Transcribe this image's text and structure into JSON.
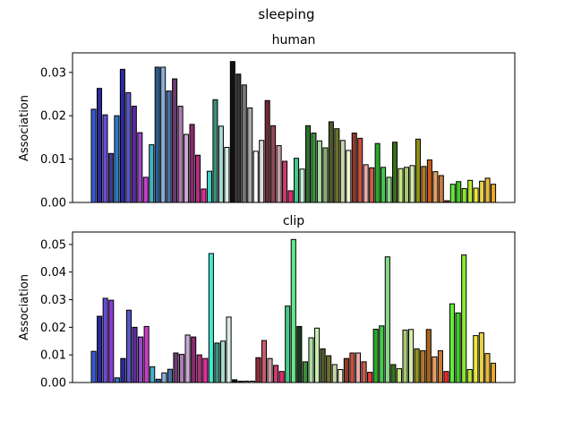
{
  "figure_title": "sleeping",
  "chart_data": [
    {
      "type": "bar",
      "title": "human",
      "xlabel": "",
      "ylabel": "Association",
      "ylim": [
        0,
        0.0345
      ],
      "yticks": [
        0.0,
        0.01,
        0.02,
        0.03
      ],
      "ytick_labels": [
        "0.00",
        "0.01",
        "0.02",
        "0.03"
      ],
      "grid": false,
      "legend": "none",
      "values": [
        0.0215,
        0.0263,
        0.0202,
        0.0113,
        0.02,
        0.0307,
        0.0253,
        0.0222,
        0.0161,
        0.0058,
        0.0133,
        0.0312,
        0.0312,
        0.0257,
        0.0285,
        0.0222,
        0.0157,
        0.018,
        0.0109,
        0.0031,
        0.0072,
        0.0237,
        0.0176,
        0.0127,
        0.0325,
        0.0296,
        0.0271,
        0.0218,
        0.0118,
        0.0143,
        0.0235,
        0.0177,
        0.0131,
        0.0095,
        0.0027,
        0.0102,
        0.0077,
        0.0177,
        0.016,
        0.0142,
        0.0126,
        0.0186,
        0.017,
        0.0143,
        0.012,
        0.016,
        0.0148,
        0.0087,
        0.008,
        0.0136,
        0.0081,
        0.0058,
        0.0139,
        0.0078,
        0.0081,
        0.0085,
        0.0146,
        0.0083,
        0.0098,
        0.0071,
        0.0062,
        0.0004,
        0.0042,
        0.0048,
        0.0032,
        0.0051,
        0.0033,
        0.0049,
        0.0056,
        0.0042
      ],
      "colors": [
        "#3a5bd6",
        "#2a2a9e",
        "#6a4bd6",
        "#3b3a8f",
        "#2d79c4",
        "#2a2a9e",
        "#5b55c8",
        "#5a2a9e",
        "#9a46c8",
        "#c83ec8",
        "#44b0c8",
        "#2a5d8f",
        "#8ab0dc",
        "#4a6fa8",
        "#6a3a6f",
        "#b07ab4",
        "#c8a8d6",
        "#8a2a6f",
        "#b0307e",
        "#e82a9e",
        "#44d0c8",
        "#3a8f7a",
        "#a8d8d0",
        "#d6ece8",
        "#111111",
        "#333333",
        "#777777",
        "#aaaaaa",
        "#ffffff",
        "#dddddd",
        "#6f2a36",
        "#8f4a56",
        "#c89ca8",
        "#c83e6a",
        "#e82a6f",
        "#44c88a",
        "#c8ecd6",
        "#2d6f2a",
        "#3a8f3a",
        "#a8dca0",
        "#8ab06f",
        "#4a5a2a",
        "#6a6f2a",
        "#c8d8a8",
        "#f0f0d0",
        "#8f3a2a",
        "#c8503e",
        "#e8a8a8",
        "#c85a4a",
        "#2aa82a",
        "#44c84a",
        "#8ad88a",
        "#3a6f1a",
        "#c8e880",
        "#a8c86f",
        "#d6ecb0",
        "#8f8f1a",
        "#b07a2a",
        "#c85a1a",
        "#e8a060",
        "#c87a3e",
        "#8f2a2a",
        "#66e83a",
        "#44c82a",
        "#88e830",
        "#b8e83a",
        "#e8e83a",
        "#e8d04a",
        "#e8b83a",
        "#e8a82a"
      ],
      "category_count": 70
    },
    {
      "type": "bar",
      "title": "clip",
      "xlabel": "",
      "ylabel": "Association",
      "ylim": [
        0,
        0.0545
      ],
      "yticks": [
        0.0,
        0.01,
        0.02,
        0.03,
        0.04,
        0.05
      ],
      "ytick_labels": [
        "0.00",
        "0.01",
        "0.02",
        "0.03",
        "0.04",
        "0.05"
      ],
      "grid": false,
      "legend": "none",
      "values": [
        0.0113,
        0.024,
        0.0305,
        0.0298,
        0.0017,
        0.0087,
        0.0262,
        0.02,
        0.0165,
        0.0203,
        0.0057,
        0.0012,
        0.0035,
        0.0048,
        0.0107,
        0.0102,
        0.0172,
        0.0165,
        0.01,
        0.0087,
        0.0467,
        0.0143,
        0.015,
        0.0237,
        0.001,
        0.0005,
        0.0005,
        0.0005,
        0.009,
        0.0152,
        0.0087,
        0.0062,
        0.004,
        0.0277,
        0.0518,
        0.0203,
        0.0075,
        0.0162,
        0.0197,
        0.0122,
        0.0097,
        0.0065,
        0.0047,
        0.0087,
        0.0107,
        0.0107,
        0.0075,
        0.0037,
        0.0193,
        0.0205,
        0.0455,
        0.0065,
        0.005,
        0.019,
        0.0192,
        0.0122,
        0.0115,
        0.0192,
        0.0093,
        0.0115,
        0.004,
        0.0285,
        0.0252,
        0.0462,
        0.0047,
        0.017,
        0.018,
        0.0105,
        0.007
      ],
      "colors": [
        "#3a5bd6",
        "#2a2a9e",
        "#6a4bd6",
        "#8a3ad6",
        "#2d79c4",
        "#2a2a9e",
        "#5b55c8",
        "#5a2a9e",
        "#9a46c8",
        "#c83ec8",
        "#44b0c8",
        "#2a5d8f",
        "#8ab0dc",
        "#4a6fa8",
        "#6a3a6f",
        "#b07ab4",
        "#c8a8d6",
        "#8a2a6f",
        "#b0307e",
        "#e82a9e",
        "#44e8d0",
        "#3a8f7a",
        "#a8d8d0",
        "#d6ece8",
        "#111111",
        "#333333",
        "#777777",
        "#aaaaaa",
        "#8f2a36",
        "#c85a6a",
        "#c89ca8",
        "#c83e6a",
        "#e82a6f",
        "#44c88a",
        "#66e88a",
        "#1a3a1a",
        "#3a8f3a",
        "#a8dca0",
        "#c8ecb0",
        "#4a5a2a",
        "#6a6f2a",
        "#c8d8a8",
        "#f0f0d0",
        "#8f3a2a",
        "#c8503e",
        "#e8a8a8",
        "#c85a4a",
        "#e83a3a",
        "#2aa82a",
        "#44c84a",
        "#8ad88a",
        "#3a6f1a",
        "#c8e880",
        "#a8c86f",
        "#d6ecb0",
        "#8f8f1a",
        "#b07a2a",
        "#a8651a",
        "#e8a060",
        "#c87a3e",
        "#e82a2a",
        "#66e83a",
        "#44c82a",
        "#88e830",
        "#b8e83a",
        "#e8e83a",
        "#e8d04a",
        "#e8b83a",
        "#e8a82a"
      ],
      "category_count": 69
    }
  ]
}
